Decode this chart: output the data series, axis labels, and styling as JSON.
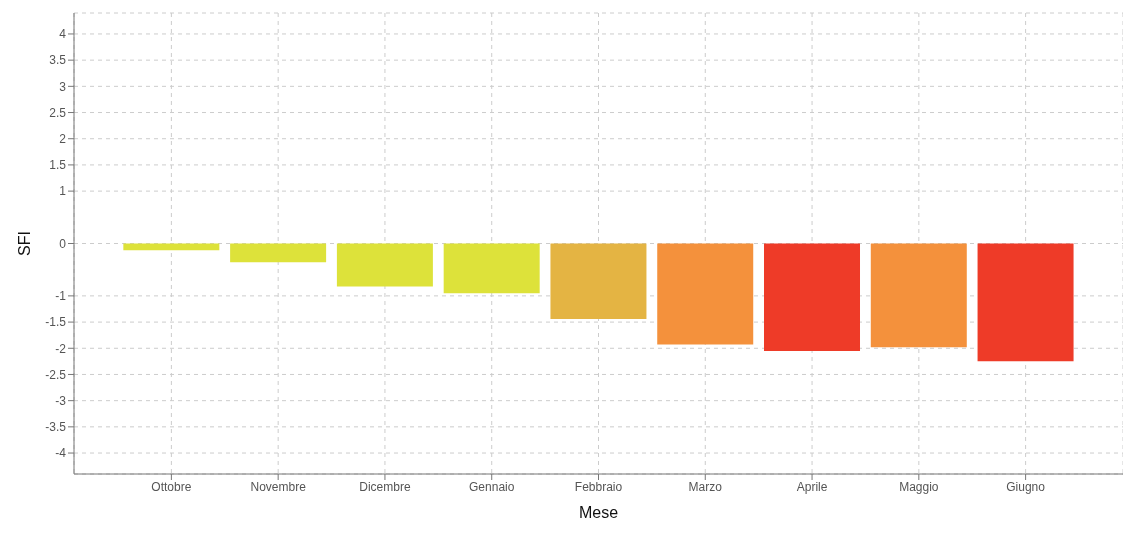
{
  "chart_data": {
    "type": "bar",
    "xlabel": "Mese",
    "ylabel": "SFI",
    "categories": [
      "Ottobre",
      "Novembre",
      "Dicembre",
      "Gennaio",
      "Febbraio",
      "Marzo",
      "Aprile",
      "Maggio",
      "Giugno"
    ],
    "values": [
      -0.13,
      -0.36,
      -0.82,
      -0.95,
      -1.44,
      -1.93,
      -2.05,
      -1.98,
      -2.25
    ],
    "colors": [
      "#dde23a",
      "#dde23a",
      "#dde23a",
      "#dde23a",
      "#e4b443",
      "#f4913c",
      "#ee3b28",
      "#f4913c",
      "#ee3b28"
    ],
    "ylim": [
      -4.4,
      4.4
    ],
    "yticks": [
      -4,
      -3.5,
      -3,
      -2.5,
      -2,
      -1.5,
      -1,
      0,
      1,
      1.5,
      2,
      2.5,
      3,
      3.5,
      4
    ],
    "grid": true
  }
}
